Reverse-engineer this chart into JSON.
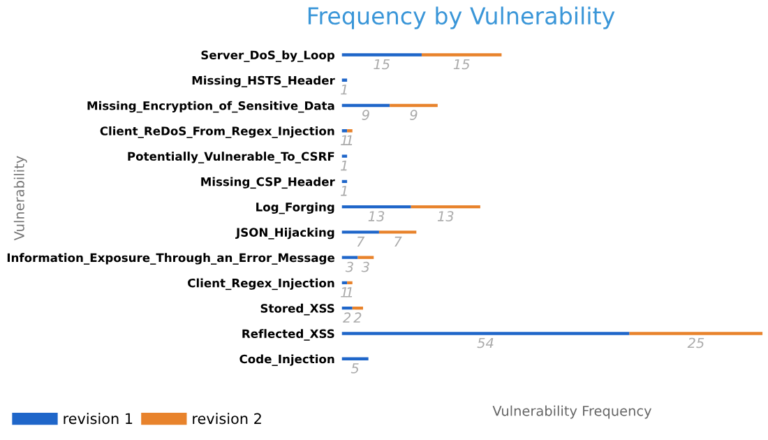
{
  "chart_data": {
    "type": "bar",
    "orientation": "horizontal",
    "stacked": true,
    "title": "Frequency by Vulnerability",
    "xlabel": "Vulnerability Frequency",
    "ylabel": "Vulnerability",
    "categories": [
      "Server_DoS_by_Loop",
      "Missing_HSTS_Header",
      "Missing_Encryption_of_Sensitive_Data",
      "Client_ReDoS_From_Regex_Injection",
      "Potentially_Vulnerable_To_CSRF",
      "Missing_CSP_Header",
      "Log_Forging",
      "JSON_Hijacking",
      "Information_Exposure_Through_an_Error_Message",
      "Client_Regex_Injection",
      "Stored_XSS",
      "Reflected_XSS",
      "Code_Injection"
    ],
    "series": [
      {
        "name": "revision 1",
        "color": "#1f66c9",
        "values": [
          15,
          1,
          9,
          1,
          1,
          1,
          13,
          7,
          3,
          1,
          2,
          54,
          5
        ]
      },
      {
        "name": "revision 2",
        "color": "#e8832c",
        "values": [
          15,
          null,
          9,
          1,
          null,
          null,
          13,
          7,
          3,
          1,
          2,
          25,
          null
        ]
      }
    ],
    "data_labels": true,
    "legend": "bottom left",
    "grid": false,
    "tick_labels": "y"
  }
}
